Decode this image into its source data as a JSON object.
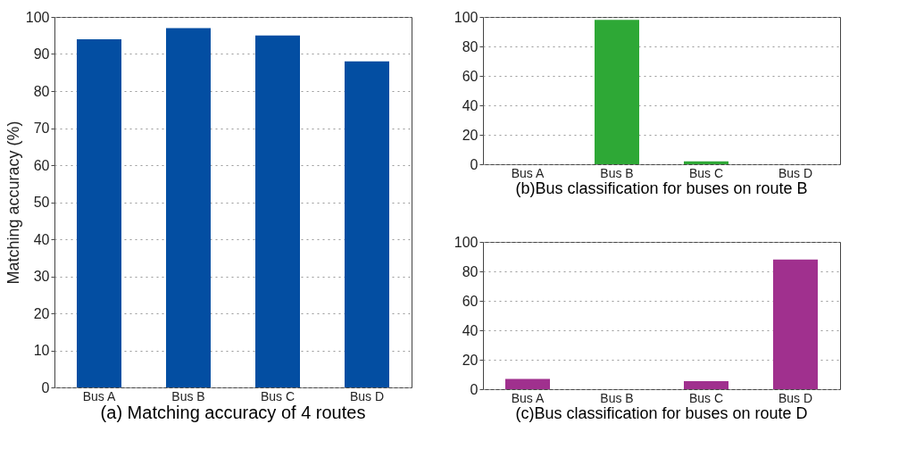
{
  "chart_data": [
    {
      "type": "bar",
      "title": "(a) Matching accuracy of 4 routes",
      "ylabel": "Matching accuracy (%)",
      "categories": [
        "Bus A",
        "Bus B",
        "Bus C",
        "Bus D"
      ],
      "values": [
        94,
        97,
        95,
        88
      ],
      "color": "#034ea2",
      "ylim": [
        0,
        100
      ],
      "yticks": [
        0,
        10,
        20,
        30,
        40,
        50,
        60,
        70,
        80,
        90,
        100
      ],
      "grid": "y"
    },
    {
      "type": "bar",
      "title": "(b)Bus classification for buses on route B",
      "categories": [
        "Bus A",
        "Bus B",
        "Bus C",
        "Bus D"
      ],
      "values": [
        0,
        98,
        2,
        0
      ],
      "color": "#2ea836",
      "ylim": [
        0,
        100
      ],
      "yticks": [
        0,
        20,
        40,
        60,
        80,
        100
      ],
      "grid": "y"
    },
    {
      "type": "bar",
      "title": "(c)Bus classification for buses on route D",
      "categories": [
        "Bus A",
        "Bus B",
        "Bus C",
        "Bus D"
      ],
      "values": [
        7,
        0,
        5.5,
        88
      ],
      "color": "#a0308e",
      "ylim": [
        0,
        100
      ],
      "yticks": [
        0,
        20,
        40,
        60,
        80,
        100
      ],
      "grid": "y"
    }
  ]
}
